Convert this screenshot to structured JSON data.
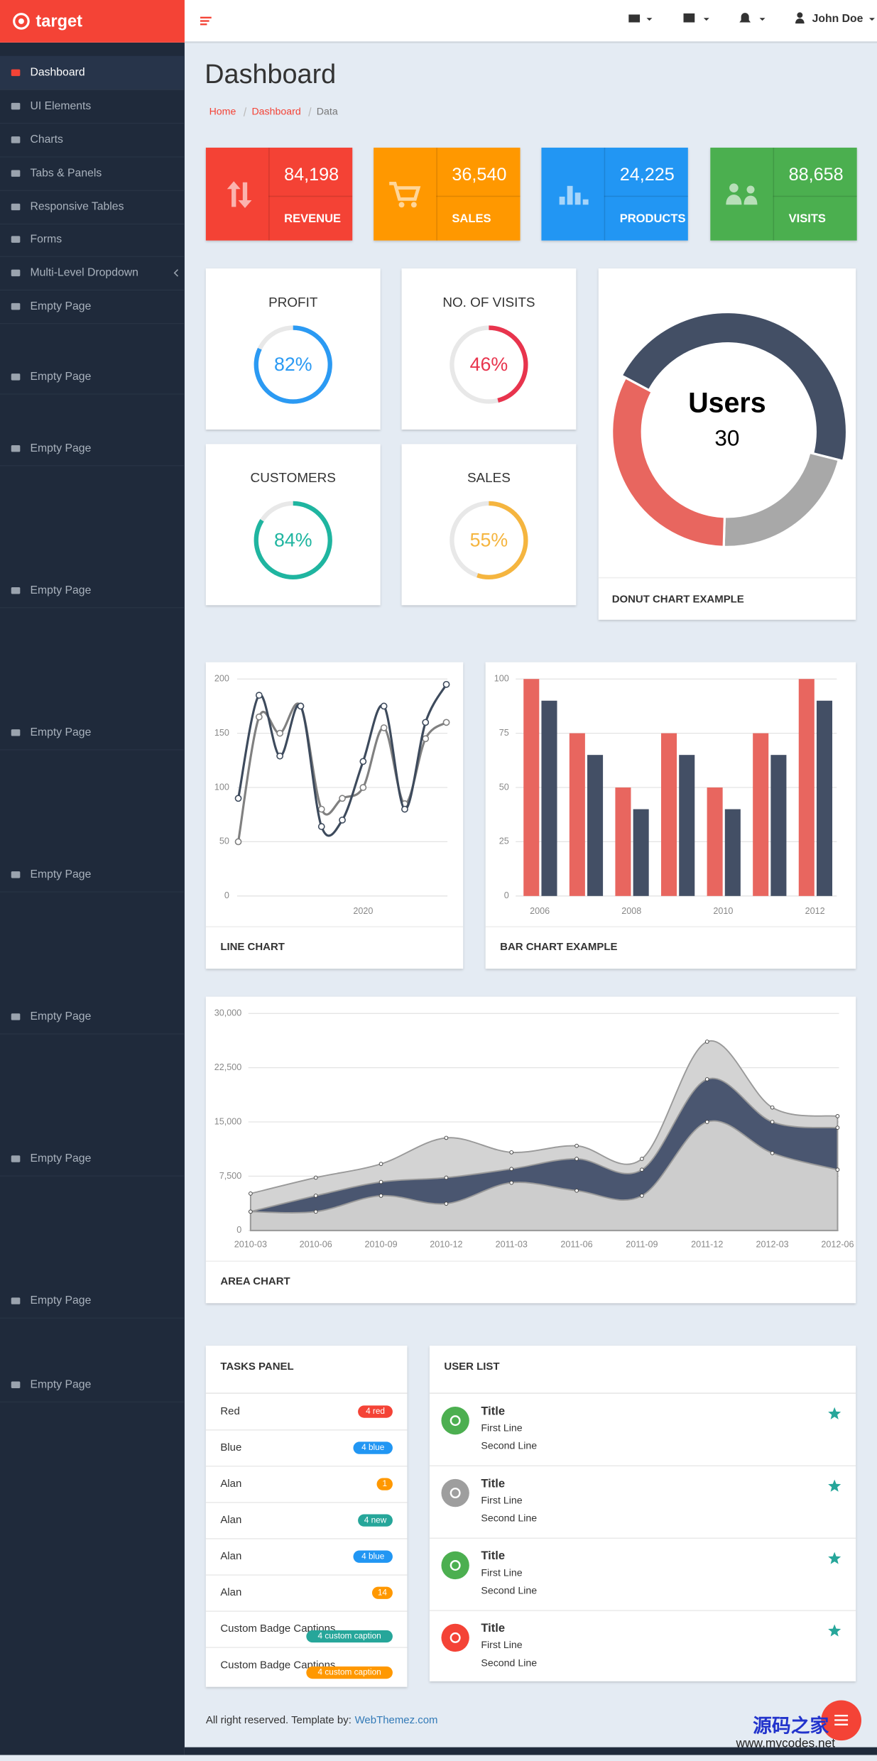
{
  "brand": "target",
  "nav": [
    "Dashboard",
    "UI Elements",
    "Charts",
    "Tabs & Panels",
    "Responsive Tables",
    "Forms",
    "Multi-Level Dropdown",
    "Empty Page",
    "Empty Page",
    "Empty Page",
    "Empty Page",
    "Empty Page",
    "Empty Page",
    "Empty Page",
    "Empty Page",
    "Empty Page",
    "Empty Page"
  ],
  "topbar": {
    "user": "John Doe"
  },
  "header": {
    "title": "Dashboard",
    "breadcrumb": [
      "Home",
      "Dashboard",
      "Data"
    ]
  },
  "stats": [
    {
      "value": "84,198",
      "label": "REVENUE",
      "color": "#f44336"
    },
    {
      "value": "36,540",
      "label": "SALES",
      "color": "#ff9800"
    },
    {
      "value": "24,225",
      "label": "PRODUCTS",
      "color": "#2196f3"
    },
    {
      "value": "88,658",
      "label": "VISITS",
      "color": "#4caf50"
    }
  ],
  "gauges": [
    {
      "title": "PROFIT",
      "value": 82,
      "value_label": "82%",
      "color": "#2b9af3"
    },
    {
      "title": "NO. OF VISITS",
      "value": 46,
      "value_label": "46%",
      "color": "#e8344d"
    },
    {
      "title": "CUSTOMERS",
      "value": 84,
      "value_label": "84%",
      "color": "#1fb5a0"
    },
    {
      "title": "SALES",
      "value": 55,
      "value_label": "55%",
      "color": "#f5b53f"
    }
  ],
  "donut": {
    "type": "donut",
    "title": "DONUT CHART EXAMPLE",
    "label": "Users",
    "values": [
      30,
      14,
      21
    ],
    "colors": [
      "#434f65",
      "#a8a8a8",
      "#e8665f"
    ]
  },
  "line_chart": {
    "type": "line",
    "title": "LINE CHART",
    "categories": [
      null,
      null,
      null,
      null,
      null,
      null,
      "2020",
      null,
      null,
      null,
      null
    ],
    "series": [
      {
        "color": "#3d4a5c",
        "values": [
          90,
          185,
          129,
          175,
          64,
          70,
          124,
          175,
          80,
          160,
          195
        ]
      },
      {
        "color": "#808080",
        "values": [
          50,
          165,
          150,
          175,
          80,
          90,
          100,
          155,
          85,
          145,
          160
        ]
      }
    ],
    "ylim": [
      0,
      200
    ],
    "yticks": [
      0,
      50,
      100,
      150,
      200
    ],
    "grid": true
  },
  "bar_chart": {
    "type": "bar",
    "title": "BAR CHART EXAMPLE",
    "categories": [
      "2006",
      null,
      "2008",
      null,
      "2010",
      null,
      "2012"
    ],
    "series": [
      {
        "color": "#e8665f",
        "values": [
          100,
          75,
          50,
          75,
          50,
          75,
          100
        ]
      },
      {
        "color": "#434f65",
        "values": [
          90,
          65,
          40,
          65,
          40,
          65,
          90
        ]
      }
    ],
    "ylim": [
      0,
      100
    ],
    "yticks": [
      0,
      25,
      50,
      75,
      100
    ],
    "grid": true
  },
  "area_chart": {
    "type": "area",
    "stacked": true,
    "title": "AREA CHART",
    "categories": [
      "2010-03",
      "2010-06",
      "2010-09",
      "2010-12",
      "2011-03",
      "2011-06",
      "2011-09",
      "2011-12",
      "2012-03",
      "2012-06"
    ],
    "series": [
      {
        "color": "#cdcdcd",
        "values": [
          2600,
          2600,
          4800,
          3700,
          6600,
          5500,
          4800,
          15000,
          10700,
          8400
        ]
      },
      {
        "color": "#4a5670",
        "values": [
          0,
          2200,
          1900,
          3600,
          1900,
          4400,
          3600,
          5900,
          4300,
          5800
        ]
      },
      {
        "color": "#d3d3d3",
        "values": [
          2500,
          2500,
          2500,
          5500,
          2300,
          1800,
          1500,
          5200,
          2000,
          1600
        ]
      }
    ],
    "ylim": [
      0,
      30000
    ],
    "yticks": [
      0,
      {
        "value": 7500,
        "label": "7,500"
      },
      {
        "value": 15000,
        "label": "15,000"
      },
      {
        "value": 22500,
        "label": "22,500"
      },
      {
        "value": 30000,
        "label": "30,000"
      }
    ],
    "grid": true
  },
  "tasks": {
    "title": "TASKS PANEL",
    "items": [
      {
        "label": "Red",
        "badge": "4 red",
        "color": "#f44336"
      },
      {
        "label": "Blue",
        "badge": "4 blue",
        "color": "#2196f3"
      },
      {
        "label": "Alan",
        "badge": "1",
        "color": "#ff9800"
      },
      {
        "label": "Alan",
        "badge": "4 new",
        "color": "#26a69a"
      },
      {
        "label": "Alan",
        "badge": "4 blue",
        "color": "#2196f3"
      },
      {
        "label": "Alan",
        "badge": "14",
        "color": "#ff9800"
      },
      {
        "label": "Custom Badge Captions",
        "badge": "4 custom caption",
        "color": "#26a69a"
      },
      {
        "label": "Custom Badge Captions",
        "badge": "4 custom caption",
        "color": "#ff9800"
      }
    ]
  },
  "users": {
    "title": "USER LIST",
    "items": [
      {
        "title": "Title",
        "line1": "First Line",
        "line2": "Second Line",
        "color": "#4caf50"
      },
      {
        "title": "Title",
        "line1": "First Line",
        "line2": "Second Line",
        "color": "#9e9e9e"
      },
      {
        "title": "Title",
        "line1": "First Line",
        "line2": "Second Line",
        "color": "#4caf50"
      },
      {
        "title": "Title",
        "line1": "First Line",
        "line2": "Second Line",
        "color": "#f44336"
      }
    ]
  },
  "footer": {
    "text": "All right reserved. Template by:",
    "link": "WebThemez.com"
  },
  "watermark": [
    "源码之家",
    "www.mycodes.net"
  ]
}
